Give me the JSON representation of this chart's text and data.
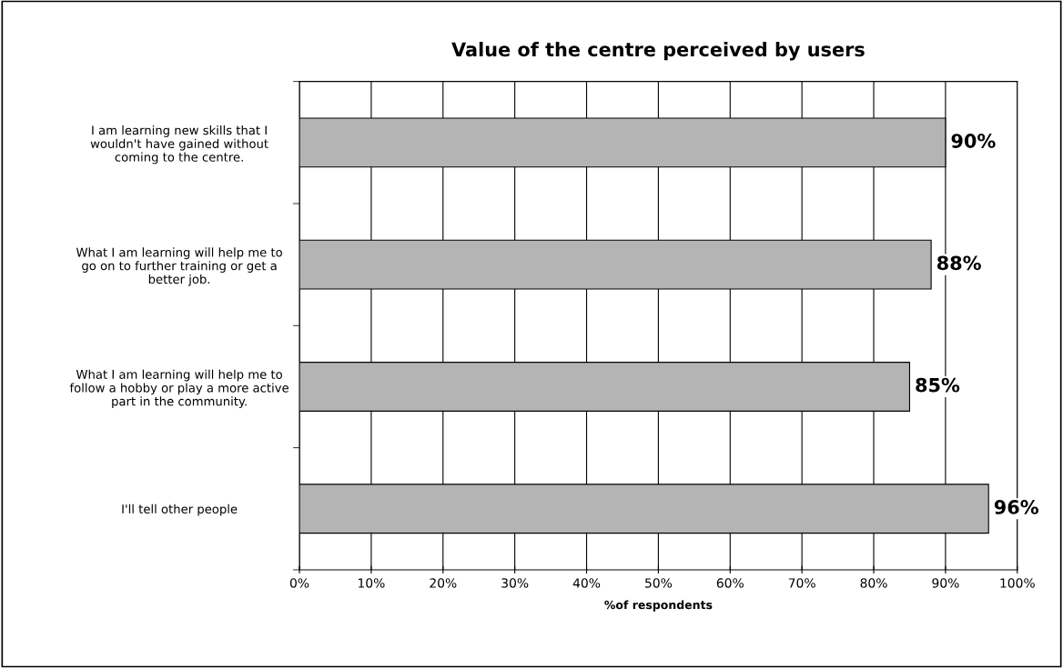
{
  "chart_data": {
    "type": "bar",
    "orientation": "horizontal",
    "title": "Value of the centre perceived by users",
    "xlabel": "%of respondents",
    "categories": [
      "I am learning new skills that I\nwouldn't have gained without\ncoming to the centre.",
      "What I am learning will help me to\ngo on to further training or get a\nbetter job.",
      "What I am learning will help me to\nfollow a hobby or play a more active\npart in the community.",
      "I'll tell other people"
    ],
    "values": [
      90,
      88,
      85,
      96
    ],
    "color": "#b4b4b4",
    "value_labels": [
      "90%",
      "88%",
      "85%",
      "96%"
    ],
    "xlim": [
      0,
      100
    ],
    "xticks": [
      {
        "value": 0,
        "label": "0%"
      },
      {
        "value": 10,
        "label": "10%"
      },
      {
        "value": 20,
        "label": "20%"
      },
      {
        "value": 30,
        "label": "30%"
      },
      {
        "value": 40,
        "label": "40%"
      },
      {
        "value": 50,
        "label": "50%"
      },
      {
        "value": 60,
        "label": "60%"
      },
      {
        "value": 70,
        "label": "70%"
      },
      {
        "value": 80,
        "label": "80%"
      },
      {
        "value": 90,
        "label": "90%"
      },
      {
        "value": 100,
        "label": "100%"
      }
    ],
    "grid": "x",
    "legend": false
  }
}
